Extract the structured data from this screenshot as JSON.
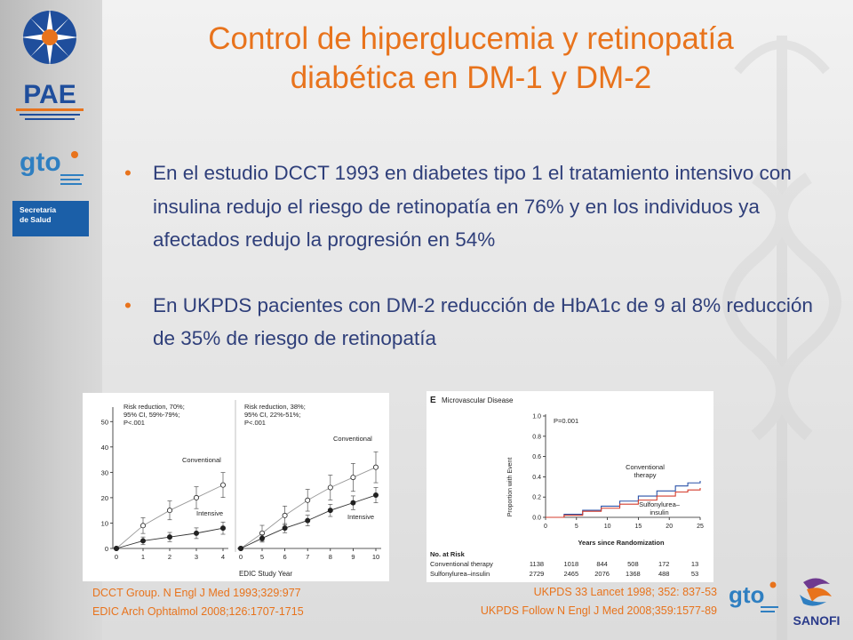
{
  "title": {
    "line1": "Control de hiperglucemia y retinopatía",
    "line2": "diabética en DM-1 y DM-2"
  },
  "bullets": [
    "En el estudio DCCT 1993 en diabetes tipo 1 el tratamiento intensivo con insulina redujo el riesgo de retinopatía en 76% y en los individuos ya afectados redujo la progresión en 54%",
    "En UKPDS pacientes con DM-2 reducción de HbA1c de 9 al 8% reducción de 35% de riesgo de retinopatía"
  ],
  "logos": {
    "pae": "PAE",
    "gto": "gto",
    "secretaria_line1": "Secretaría",
    "secretaria_line2": "de Salud",
    "sanofi": "SANOFI"
  },
  "citations_left": [
    "DCCT Group. N Engl J Med 1993;329:977",
    "EDIC Arch Ophtalmol 2008;126:1707-1715"
  ],
  "citations_right": [
    "UKPDS 33 Lancet 1998; 352: 837-53",
    "UKPDS Follow N Engl J Med 2008;359:1577-89"
  ],
  "chart_data": [
    {
      "type": "line",
      "panel": "left",
      "annotation": [
        "Risk reduction, 70%;",
        "95% CI, 59%-79%;",
        "P<.001"
      ],
      "x": [
        0,
        1,
        2,
        3,
        4
      ],
      "yticks": [
        0,
        10,
        20,
        30,
        40,
        50
      ],
      "ylim": [
        0,
        55
      ],
      "series": [
        {
          "name": "Conventional",
          "values": [
            0,
            9,
            15,
            20,
            25
          ]
        },
        {
          "name": "Intensive",
          "values": [
            0,
            3,
            4.5,
            6,
            8
          ]
        }
      ]
    },
    {
      "type": "line",
      "panel": "middle",
      "annotation": [
        "Risk reduction, 38%;",
        "95% CI, 22%-51%;",
        "P<.001"
      ],
      "xlabel": "EDIC Study Year",
      "x": [
        0,
        5,
        6,
        7,
        8,
        9,
        10
      ],
      "ylim": [
        0,
        55
      ],
      "series": [
        {
          "name": "Conventional",
          "values": [
            0,
            6,
            13,
            19,
            24,
            28,
            32
          ]
        },
        {
          "name": "Intensive",
          "values": [
            0,
            4,
            8,
            11,
            15,
            18,
            21
          ]
        }
      ]
    },
    {
      "type": "line",
      "panel_label": "E",
      "title": "Microvascular Disease",
      "p_value": "P=0.001",
      "ylabel": "Proportion with Event",
      "xlabel": "Years since Randomization",
      "yticks": [
        "0.0",
        "0.2",
        "0.4",
        "0.6",
        "0.8",
        "1.0"
      ],
      "xticks": [
        "0",
        "5",
        "10",
        "15",
        "20",
        "25"
      ],
      "ylim": [
        0,
        1
      ],
      "xlim": [
        0,
        25
      ],
      "series": [
        {
          "name": "Conventional therapy",
          "color": "#2a52a8",
          "x": [
            0,
            3,
            6,
            9,
            12,
            15,
            18,
            21,
            23,
            25
          ],
          "values": [
            0,
            0.03,
            0.07,
            0.11,
            0.16,
            0.21,
            0.26,
            0.31,
            0.34,
            0.36
          ]
        },
        {
          "name": "Sulfonylurea–insulin",
          "color": "#d43c2c",
          "x": [
            0,
            3,
            6,
            9,
            12,
            15,
            18,
            21,
            23,
            25
          ],
          "values": [
            0,
            0.02,
            0.06,
            0.09,
            0.13,
            0.17,
            0.21,
            0.25,
            0.27,
            0.29
          ]
        }
      ],
      "risk_table": {
        "header": "No. at Risk",
        "rows": [
          {
            "label": "Conventional therapy",
            "values": [
              "1138",
              "1018",
              "844",
              "508",
              "172",
              "13"
            ]
          },
          {
            "label": "Sulfonylurea–insulin",
            "values": [
              "2729",
              "2465",
              "2076",
              "1368",
              "488",
              "53"
            ]
          }
        ]
      }
    }
  ]
}
